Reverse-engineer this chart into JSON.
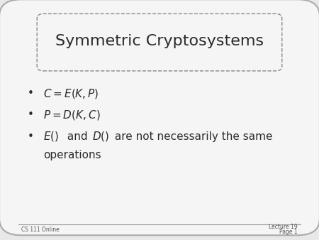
{
  "title": "Symmetric Cryptosystems",
  "background_color": "#e8e8e8",
  "slide_bg": "#f5f5f5",
  "footer_left": "CS 111 Online",
  "footer_right_line1": "Lecture 19",
  "footer_right_line2": "Page 1",
  "text_color": "#2b2b2b",
  "footer_color": "#555555"
}
